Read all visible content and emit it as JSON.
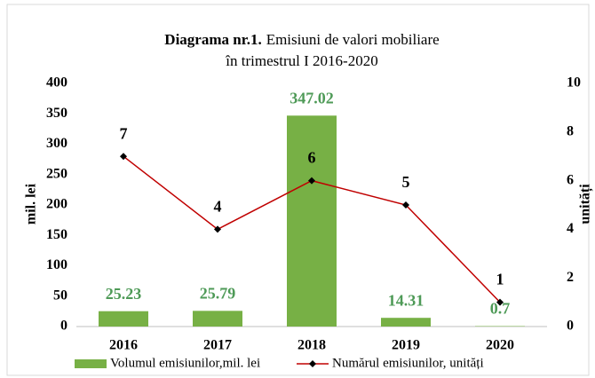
{
  "chart_data": {
    "type": "bar",
    "title": [
      "Diagrama nr.1.",
      "Emisiuni  de valori mobiliare",
      "în trimestrul  I 2016-2020"
    ],
    "categories": [
      "2016",
      "2017",
      "2018",
      "2019",
      "2020"
    ],
    "series": [
      {
        "name": "Volumul emisiunilor,mil. lei",
        "type": "bar",
        "axis": "y",
        "color": "#77b045",
        "label_color": "#4e9a57",
        "values": [
          25.23,
          25.79,
          347.02,
          14.31,
          0.7
        ]
      },
      {
        "name": "Numărul emisiunilor, unități",
        "type": "line",
        "axis": "y2",
        "color": "#c00000",
        "label_color": "#000000",
        "values": [
          7,
          4,
          6,
          5,
          1
        ]
      }
    ],
    "ylabel": "mil. lei",
    "y2label": "unități",
    "ylim": [
      0,
      400
    ],
    "yticks": [
      0,
      50,
      100,
      150,
      200,
      250,
      300,
      350,
      400
    ],
    "y2lim": [
      0,
      10
    ],
    "y2ticks": [
      0,
      2,
      4,
      6,
      8,
      10
    ],
    "grid": false,
    "legend": "bottom"
  }
}
